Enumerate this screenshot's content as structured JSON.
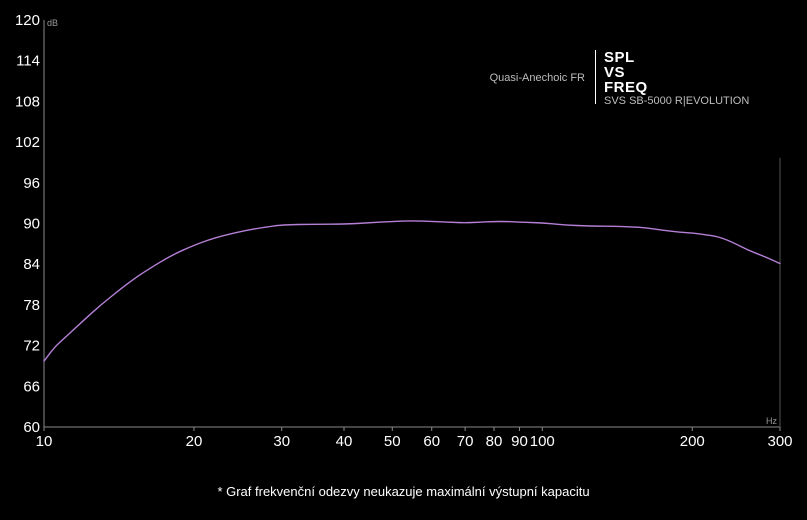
{
  "chart_data": {
    "type": "line",
    "y_unit": "dB",
    "x_unit": "Hz",
    "x_scale": "log",
    "ylim": [
      60,
      120
    ],
    "xlim": [
      10,
      300
    ],
    "y_ticks": [
      60,
      66,
      72,
      78,
      84,
      90,
      96,
      102,
      108,
      114,
      120
    ],
    "x_ticks": [
      10,
      20,
      30,
      40,
      50,
      60,
      70,
      80,
      90,
      100,
      200,
      300
    ],
    "legend": {
      "description": "Quasi-Anechoic FR",
      "brand_lines": [
        "SPL",
        "VS",
        "FREQ"
      ],
      "model": "SVS SB-5000 R|EVOLUTION"
    },
    "series": [
      {
        "color": "#b57fd6",
        "x": [
          10,
          10.5,
          11,
          12,
          13,
          14,
          15,
          16,
          18,
          20,
          22,
          25,
          28,
          30,
          35,
          40,
          45,
          50,
          55,
          60,
          65,
          70,
          75,
          80,
          85,
          90,
          100,
          110,
          125,
          140,
          150,
          160,
          175,
          190,
          200,
          210,
          225,
          240,
          260,
          280,
          300
        ],
        "y": [
          69.7,
          71.8,
          73.1,
          75.7,
          78.0,
          79.9,
          81.6,
          83.0,
          85.3,
          86.8,
          87.9,
          88.9,
          89.5,
          89.8,
          89.9,
          89.9,
          90.1,
          90.3,
          90.4,
          90.3,
          90.2,
          90.1,
          90.2,
          90.3,
          90.3,
          90.2,
          90.1,
          89.8,
          89.6,
          89.6,
          89.5,
          89.4,
          89.0,
          88.7,
          88.6,
          88.4,
          88.1,
          87.3,
          86.0,
          85.1,
          84.1
        ]
      }
    ]
  },
  "footnote": "* Graf frekvenční odezvy neukazuje maximální výstupní kapacitu"
}
